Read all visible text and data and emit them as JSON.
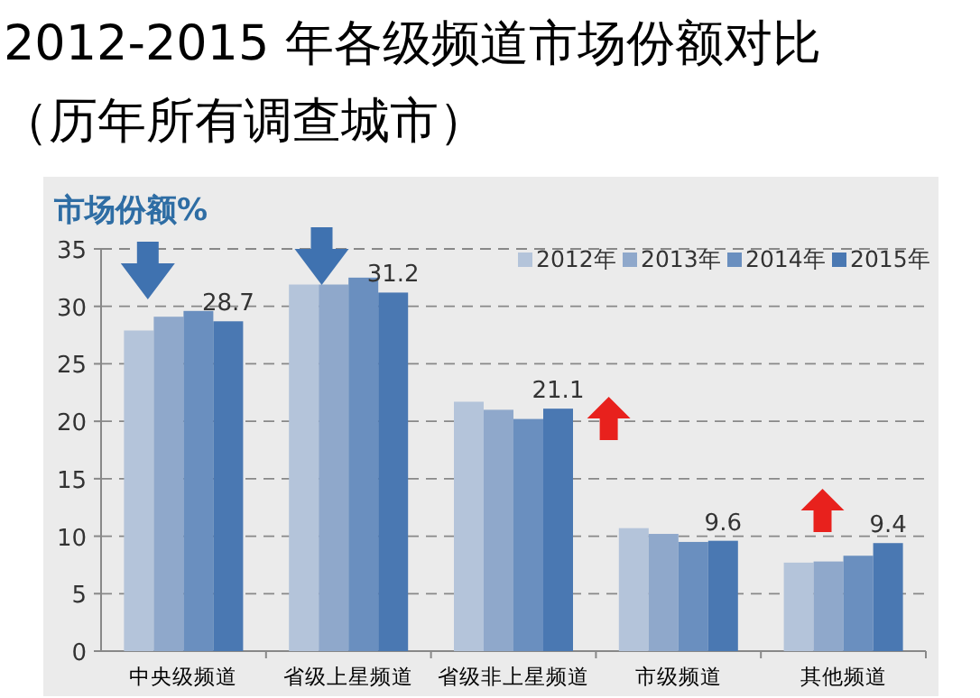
{
  "chart_data": {
    "type": "bar",
    "title": "2012-2015 年各级频道市场份额对比",
    "subtitle": "（历年所有调查城市）",
    "ylabel": "市场份额%",
    "categories": [
      "中央级频道",
      "省级上星频道",
      "省级非上星频道",
      "市级频道",
      "其他频道"
    ],
    "series": [
      {
        "name": "2012年",
        "color": "#b4c4da",
        "values": [
          27.9,
          31.9,
          21.7,
          10.7,
          7.7
        ]
      },
      {
        "name": "2013年",
        "color": "#8fa8cb",
        "values": [
          29.1,
          31.9,
          21.0,
          10.2,
          7.8
        ]
      },
      {
        "name": "2014年",
        "color": "#6a8fbf",
        "values": [
          29.6,
          32.5,
          20.2,
          9.5,
          8.3
        ]
      },
      {
        "name": "2015年",
        "color": "#4a78b2",
        "values": [
          28.7,
          31.2,
          21.1,
          9.6,
          9.4
        ],
        "value_labels": [
          "28.7",
          "31.2",
          "21.1",
          "9.6",
          "9.4"
        ]
      }
    ],
    "ylim": [
      0,
      35
    ],
    "yticks": [
      0,
      5,
      10,
      15,
      20,
      25,
      30,
      35
    ],
    "grid": "y",
    "legend": "top right"
  }
}
